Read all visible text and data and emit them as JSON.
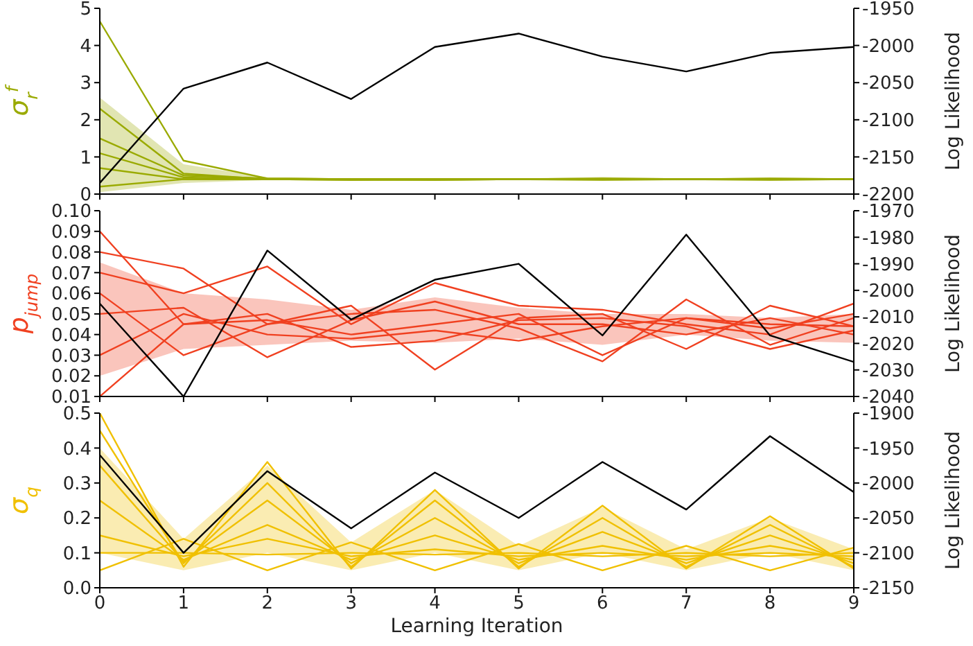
{
  "chart_data": [
    {
      "type": "line",
      "ylabel": "σ$_{r}$$^{f}$",
      "y2label": "Log Likelihood",
      "x": [
        0,
        1,
        2,
        3,
        4,
        5,
        6,
        7,
        8,
        9
      ],
      "xlim": [
        0,
        9
      ],
      "xticks": [
        0,
        1,
        2,
        3,
        4,
        5,
        6,
        7,
        8,
        9
      ],
      "ylim": [
        0,
        5
      ],
      "yticks": [
        0,
        1,
        2,
        3,
        4,
        5
      ],
      "y2lim": [
        -2200,
        -1950
      ],
      "y2ticks": [
        -2200,
        -2150,
        -2100,
        -2050,
        -2000,
        -1950
      ],
      "tick_labels": "y",
      "grid": false,
      "legend": false,
      "marker": "none",
      "line_style": "solid",
      "series": [
        {
          "color": "#9aaa00",
          "values": [
            4.65,
            0.9,
            0.42,
            0.4,
            0.4,
            0.4,
            0.4,
            0.4,
            0.4,
            0.4
          ]
        },
        {
          "color": "#9aaa00",
          "values": [
            2.3,
            0.55,
            0.4,
            0.38,
            0.38,
            0.4,
            0.42,
            0.4,
            0.42,
            0.4
          ]
        },
        {
          "color": "#9aaa00",
          "values": [
            1.5,
            0.5,
            0.42,
            0.4,
            0.38,
            0.4,
            0.4,
            0.4,
            0.4,
            0.4
          ],
          "lower": [
            0.05,
            0.3,
            0.38,
            0.37,
            0.36,
            0.38,
            0.36,
            0.37,
            0.36,
            0.38
          ],
          "upper": [
            2.6,
            0.8,
            0.45,
            0.42,
            0.42,
            0.42,
            0.46,
            0.42,
            0.45,
            0.42
          ]
        },
        {
          "color": "#9aaa00",
          "values": [
            1.1,
            0.45,
            0.4,
            0.4,
            0.4,
            0.4,
            0.38,
            0.4,
            0.38,
            0.4
          ]
        },
        {
          "color": "#9aaa00",
          "values": [
            0.7,
            0.4,
            0.4,
            0.38,
            0.4,
            0.4,
            0.4,
            0.4,
            0.4,
            0.4
          ]
        },
        {
          "color": "#9aaa00",
          "values": [
            0.2,
            0.4,
            0.4,
            0.4,
            0.4,
            0.4,
            0.4,
            0.4,
            0.4,
            0.4
          ]
        },
        {
          "color": "#000000",
          "axis": "y2",
          "values": [
            -2185,
            -2058,
            -2023,
            -2072,
            -2002,
            -1984,
            -2015,
            -2035,
            -2010,
            -2002
          ]
        }
      ]
    },
    {
      "type": "line",
      "ylabel": "p$_{jump}$",
      "y2label": "Log Likelihood",
      "x": [
        0,
        1,
        2,
        3,
        4,
        5,
        6,
        7,
        8,
        9
      ],
      "xlim": [
        0,
        9
      ],
      "xticks": [
        0,
        1,
        2,
        3,
        4,
        5,
        6,
        7,
        8,
        9
      ],
      "ylim": [
        0.01,
        0.1
      ],
      "yticks": [
        {
          "value": 0.01,
          "label": "0.01"
        },
        {
          "value": 0.02,
          "label": "0.02"
        },
        {
          "value": 0.03,
          "label": "0.03"
        },
        {
          "value": 0.04,
          "label": "0.04"
        },
        {
          "value": 0.05,
          "label": "0.05"
        },
        {
          "value": 0.06,
          "label": "0.06"
        },
        {
          "value": 0.07,
          "label": "0.07"
        },
        {
          "value": 0.08,
          "label": "0.08"
        },
        {
          "value": 0.09,
          "label": "0.09"
        },
        {
          "value": 0.1,
          "label": "0.10"
        }
      ],
      "y2lim": [
        -2040,
        -1970
      ],
      "y2ticks": [
        -2040,
        -2030,
        -2020,
        -2010,
        -2000,
        -1990,
        -1980,
        -1970
      ],
      "tick_labels": "y",
      "grid": false,
      "legend": false,
      "marker": "none",
      "line_style": "solid",
      "series": [
        {
          "color": "#f04020",
          "values": [
            0.09,
            0.045,
            0.047,
            0.04,
            0.045,
            0.05,
            0.03,
            0.048,
            0.045,
            0.044
          ]
        },
        {
          "color": "#f04020",
          "values": [
            0.08,
            0.072,
            0.045,
            0.054,
            0.023,
            0.048,
            0.05,
            0.033,
            0.054,
            0.044
          ]
        },
        {
          "color": "#f04020",
          "values": [
            0.07,
            0.06,
            0.073,
            0.045,
            0.065,
            0.054,
            0.052,
            0.045,
            0.04,
            0.055
          ]
        },
        {
          "color": "#f04020",
          "values": [
            0.06,
            0.03,
            0.045,
            0.05,
            0.052,
            0.043,
            0.027,
            0.057,
            0.035,
            0.048
          ],
          "lower": [
            0.02,
            0.033,
            0.035,
            0.037,
            0.036,
            0.038,
            0.035,
            0.04,
            0.037,
            0.036
          ],
          "upper": [
            0.075,
            0.06,
            0.057,
            0.052,
            0.058,
            0.053,
            0.05,
            0.05,
            0.048,
            0.05
          ]
        },
        {
          "color": "#f04020",
          "values": [
            0.05,
            0.053,
            0.029,
            0.047,
            0.056,
            0.045,
            0.045,
            0.04,
            0.048,
            0.04
          ]
        },
        {
          "color": "#f04020",
          "values": [
            0.03,
            0.05,
            0.04,
            0.038,
            0.042,
            0.037,
            0.044,
            0.048,
            0.043,
            0.05
          ]
        },
        {
          "color": "#f04020",
          "values": [
            0.01,
            0.045,
            0.05,
            0.034,
            0.037,
            0.047,
            0.048,
            0.044,
            0.033,
            0.042
          ]
        },
        {
          "color": "#000000",
          "axis": "y2",
          "values": [
            -2005,
            -2040,
            -1985,
            -2011,
            -1996,
            -1990,
            -2017,
            -1979,
            -2017,
            -2027
          ]
        }
      ]
    },
    {
      "type": "line",
      "xlabel": "Learning Iteration",
      "ylabel": "σ$_{q}$",
      "y2label": "Log Likelihood",
      "x": [
        0,
        1,
        2,
        3,
        4,
        5,
        6,
        7,
        8,
        9
      ],
      "xlim": [
        0,
        9
      ],
      "xticks": [
        0,
        1,
        2,
        3,
        4,
        5,
        6,
        7,
        8,
        9
      ],
      "ylim": [
        0,
        0.5
      ],
      "yticks": [
        {
          "value": 0,
          "label": "0.0"
        },
        0.1,
        0.2,
        0.3,
        0.4,
        0.5
      ],
      "y2lim": [
        -2150,
        -1900
      ],
      "y2ticks": [
        -2150,
        -2100,
        -2050,
        -2000,
        -1950,
        -1900
      ],
      "grid": false,
      "legend": false,
      "marker": "none",
      "line_style": "solid",
      "series": [
        {
          "color": "#f0c000",
          "values": [
            0.5,
            0.06,
            0.36,
            0.055,
            0.28,
            0.055,
            0.235,
            0.055,
            0.205,
            0.055
          ]
        },
        {
          "color": "#f0c000",
          "values": [
            0.45,
            0.07,
            0.3,
            0.06,
            0.25,
            0.06,
            0.2,
            0.06,
            0.18,
            0.06
          ]
        },
        {
          "color": "#f0c000",
          "values": [
            0.35,
            0.075,
            0.25,
            0.07,
            0.2,
            0.07,
            0.16,
            0.07,
            0.15,
            0.07
          ],
          "lower": [
            0.1,
            0.05,
            0.1,
            0.05,
            0.1,
            0.05,
            0.1,
            0.05,
            0.1,
            0.05
          ],
          "upper": [
            0.4,
            0.14,
            0.35,
            0.13,
            0.28,
            0.12,
            0.23,
            0.11,
            0.2,
            0.11
          ]
        },
        {
          "color": "#f0c000",
          "values": [
            0.25,
            0.08,
            0.18,
            0.08,
            0.15,
            0.08,
            0.12,
            0.08,
            0.12,
            0.08
          ]
        },
        {
          "color": "#f0c000",
          "values": [
            0.15,
            0.09,
            0.14,
            0.09,
            0.11,
            0.09,
            0.1,
            0.09,
            0.1,
            0.09
          ]
        },
        {
          "color": "#f0c000",
          "values": [
            0.1,
            0.1,
            0.095,
            0.1,
            0.095,
            0.1,
            0.09,
            0.1,
            0.09,
            0.1
          ]
        },
        {
          "color": "#f0c000",
          "values": [
            0.05,
            0.14,
            0.05,
            0.13,
            0.05,
            0.125,
            0.05,
            0.12,
            0.05,
            0.115
          ]
        },
        {
          "color": "#000000",
          "axis": "y2",
          "values": [
            -1960,
            -2100,
            -1983,
            -2065,
            -1985,
            -2050,
            -1970,
            -2038,
            -1933,
            -2013
          ]
        }
      ]
    }
  ]
}
